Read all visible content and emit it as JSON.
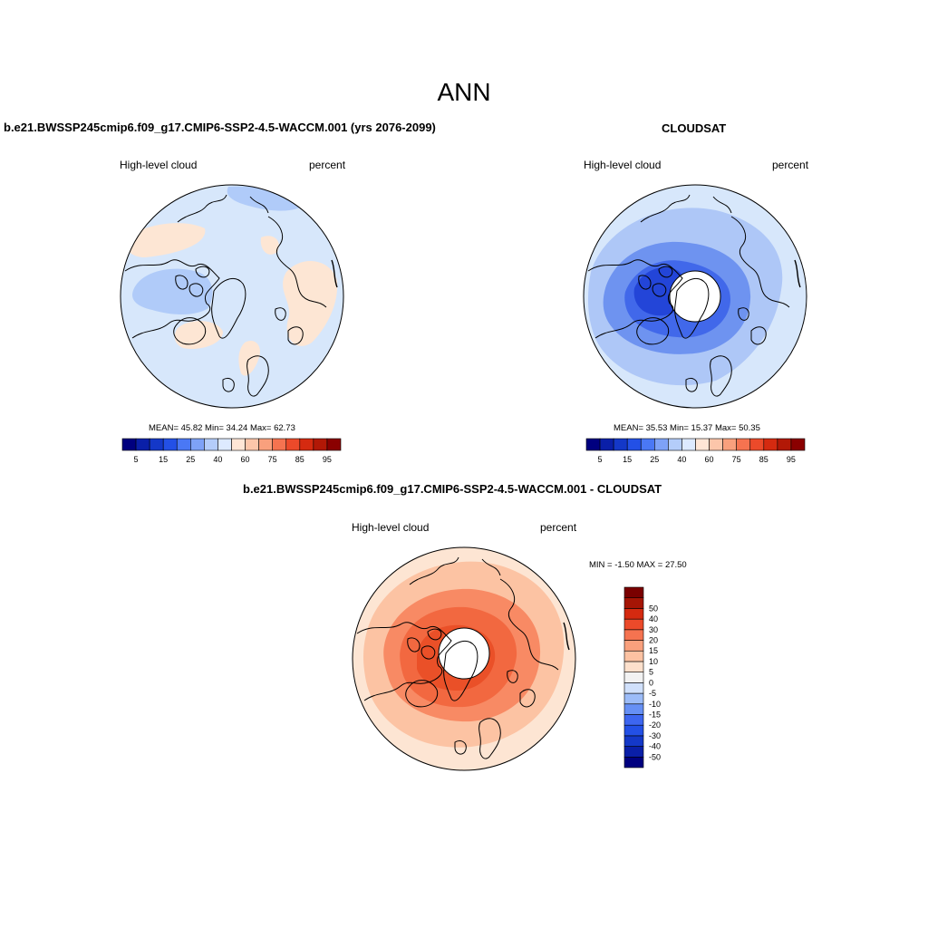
{
  "title": "ANN",
  "panels": [
    {
      "title": "b.e21.BWSSP245cmip6.f09_g17.CMIP6-SSP2-4.5-WACCM.001 (yrs 2076-2099)",
      "left_label": "High-level cloud",
      "right_label": "percent",
      "stats": {
        "mean": "45.82",
        "min": "34.24",
        "max": "62.73"
      },
      "stats_text": "MEAN=  45.82  Min=  34.24  Max=  62.73"
    },
    {
      "title": "CLOUDSAT",
      "left_label": "High-level cloud",
      "right_label": "percent",
      "stats": {
        "mean": "35.53",
        "min": "15.37",
        "max": "50.35"
      },
      "stats_text": "MEAN=  35.53  Min=  15.37  Max=  50.35"
    },
    {
      "title": "b.e21.BWSSP245cmip6.f09_g17.CMIP6-SSP2-4.5-WACCM.001 - CLOUDSAT",
      "left_label": "High-level cloud",
      "right_label": "percent",
      "stats": {
        "min": "-1.50",
        "max": "27.50"
      },
      "stats_text": "MIN =  -1.50 MAX =  27.50"
    }
  ],
  "colorbar_abs": {
    "colors": [
      "#00007f",
      "#0a1fa8",
      "#1438c8",
      "#2350e6",
      "#4a78f5",
      "#7ea2f7",
      "#b4cdfa",
      "#ddeaff",
      "#ffe6d6",
      "#fcc6aa",
      "#f9a07d",
      "#f57350",
      "#ec4a2a",
      "#d52a10",
      "#b21806",
      "#8a0000"
    ],
    "tick_labels": [
      "5",
      "15",
      "25",
      "40",
      "60",
      "75",
      "85",
      "95"
    ]
  },
  "colorbar_diff": {
    "colors": [
      "#00007f",
      "#0a1fa8",
      "#1438c8",
      "#2350e6",
      "#3d66f0",
      "#6690f5",
      "#9cbcf8",
      "#d0e0fb",
      "#f2f2f2",
      "#fde0cc",
      "#fcc2a2",
      "#f9a07d",
      "#f57350",
      "#ec4a2a",
      "#d52a10",
      "#a51505",
      "#7a0000"
    ],
    "tick_labels": [
      "-50",
      "-40",
      "-30",
      "-20",
      "-15",
      "-10",
      "-5",
      "0",
      "5",
      "10",
      "15",
      "20",
      "30",
      "40",
      "50"
    ]
  },
  "colors": {
    "model_background": "#d7e7fb",
    "model_positive": "#fde6d4",
    "model_negative": "#b0cbf9",
    "cloudsat_light": "#d7e7fb",
    "cloudsat_mid": "#aec7f7",
    "cloudsat_dark": "#6e93f0",
    "cloudsat_darker": "#4168ea",
    "cloudsat_darkest": "#2345d8",
    "diff_light": "#fde5d3",
    "diff_mid": "#fcc3a3",
    "diff_strong": "#f88a64",
    "diff_stronger": "#f26840",
    "diff_strongest": "#ea5028"
  }
}
